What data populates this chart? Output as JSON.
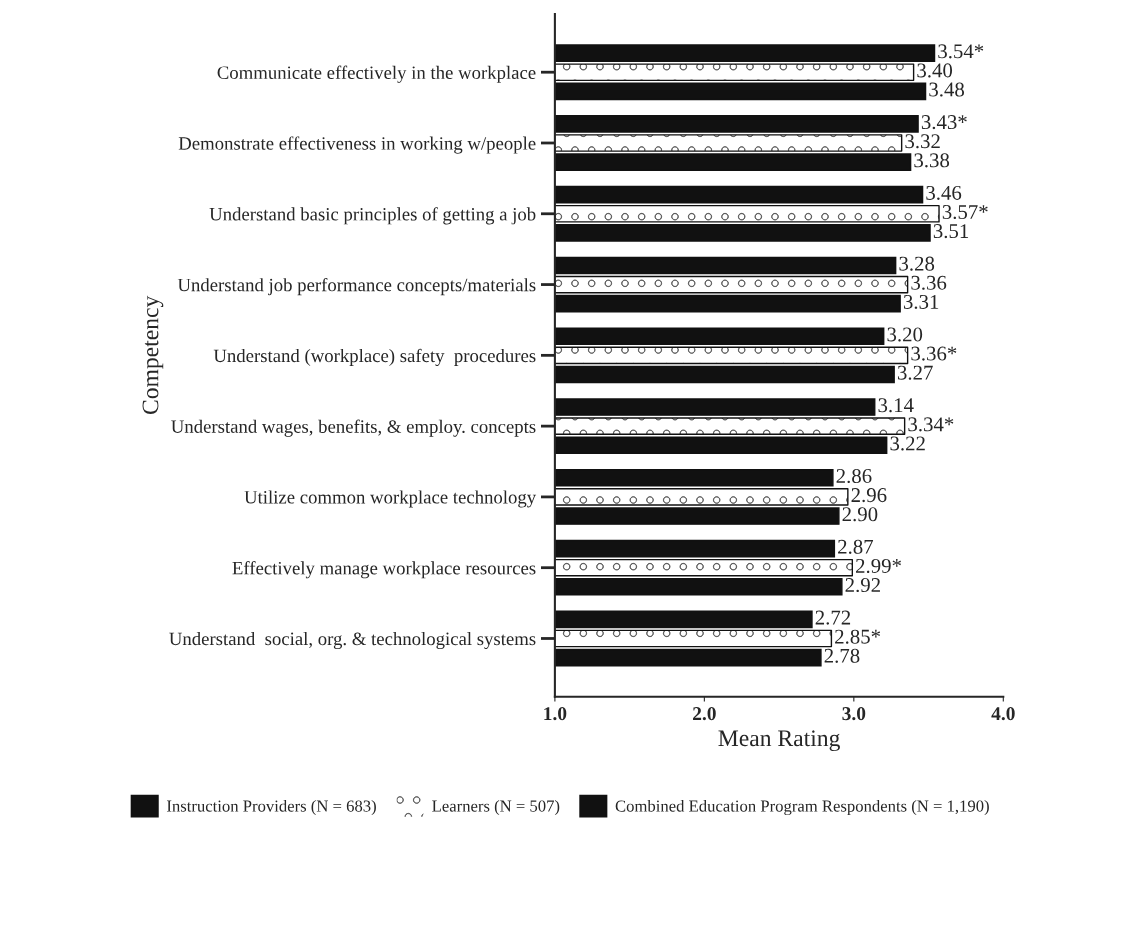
{
  "chart_data": {
    "type": "bar",
    "orientation": "horizontal",
    "categories": [
      "Communicate effectively in the workplace",
      "Demonstrate effectiveness in working w/people",
      "Understand basic principles of getting a job",
      "Understand job performance concepts/materials",
      "Understand (workplace) safety  procedures",
      "Understand wages, benefits, & employ. concepts",
      "Utilize common workplace technology",
      "Effectively manage workplace resources",
      "Understand  social, org. & technological systems"
    ],
    "series": [
      {
        "name": "Instruction Providers (N = 683)",
        "color": "#111111",
        "values": [
          3.54,
          3.43,
          3.46,
          3.28,
          3.2,
          3.14,
          2.86,
          2.87,
          2.72
        ],
        "value_labels": [
          "3.54*",
          "3.43*",
          "3.46",
          "3.28",
          "3.20",
          "3.14",
          "2.86",
          "2.87",
          "2.72"
        ]
      },
      {
        "name": "Learners (N = 507)",
        "color": "#ffffff",
        "values": [
          3.4,
          3.32,
          3.57,
          3.36,
          3.36,
          3.34,
          2.96,
          2.99,
          2.85
        ],
        "value_labels": [
          "3.40",
          "3.32",
          "3.57*",
          "3.36",
          "3.36*",
          "3.34*",
          "2.96",
          "2.99*",
          "2.85*"
        ]
      },
      {
        "name": "Combined Education Program Respondents (N = 1,190)",
        "color": "#111111",
        "values": [
          3.48,
          3.38,
          3.51,
          3.31,
          3.27,
          3.22,
          2.9,
          2.92,
          2.78
        ],
        "value_labels": [
          "3.48",
          "3.38",
          "3.51",
          "3.31",
          "3.27",
          "3.22",
          "2.90",
          "2.92",
          "2.78"
        ]
      }
    ],
    "xlim": [
      1.0,
      4.0
    ],
    "xticks": [
      {
        "value": 1.0,
        "label": "1.0"
      },
      {
        "value": 2.0,
        "label": "2.0"
      },
      {
        "value": 3.0,
        "label": "3.0"
      },
      {
        "value": 4.0,
        "label": "4.0"
      }
    ],
    "xlabel": "Mean Rating",
    "ylabel": "Competency",
    "legend": "bottom",
    "grid": false
  }
}
